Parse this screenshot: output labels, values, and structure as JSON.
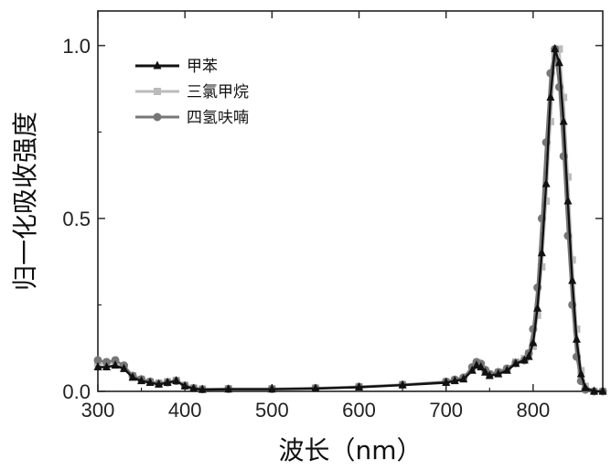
{
  "chart_data": {
    "type": "line",
    "xlabel": "波长（nm）",
    "ylabel": "归一化吸收强度",
    "xlim": [
      300,
      880
    ],
    "ylim": [
      0,
      1.1
    ],
    "x_ticks": [
      300,
      400,
      500,
      600,
      700,
      800
    ],
    "y_ticks": [
      0.0,
      0.5,
      1.0
    ],
    "x_tick_labels": [
      "300",
      "400",
      "500",
      "600",
      "700",
      "800"
    ],
    "y_tick_labels": [
      "0.0",
      "0.5",
      "1.0"
    ],
    "legend_position": "top-left",
    "grid": false,
    "series": [
      {
        "name": "甲苯",
        "color": "#111111",
        "line_width": 2.4,
        "marker": "triangle",
        "x": [
          300,
          310,
          320,
          330,
          340,
          350,
          360,
          370,
          380,
          390,
          400,
          410,
          420,
          450,
          500,
          550,
          600,
          650,
          700,
          710,
          720,
          730,
          735,
          740,
          745,
          750,
          760,
          770,
          780,
          790,
          795,
          800,
          805,
          810,
          815,
          820,
          825,
          830,
          835,
          840,
          845,
          850,
          855,
          860,
          870,
          880
        ],
        "y": [
          0.07,
          0.07,
          0.075,
          0.065,
          0.04,
          0.03,
          0.025,
          0.02,
          0.025,
          0.03,
          0.015,
          0.008,
          0.005,
          0.006,
          0.006,
          0.008,
          0.012,
          0.018,
          0.025,
          0.03,
          0.035,
          0.06,
          0.075,
          0.07,
          0.055,
          0.045,
          0.05,
          0.06,
          0.08,
          0.09,
          0.1,
          0.14,
          0.24,
          0.4,
          0.6,
          0.85,
          0.99,
          0.95,
          0.78,
          0.55,
          0.32,
          0.15,
          0.05,
          0.01,
          0.0,
          0.0
        ]
      },
      {
        "name": "三氯甲烷",
        "color": "#bbbbbb",
        "line_width": 2.4,
        "marker": "square",
        "x": [
          300,
          310,
          320,
          330,
          340,
          350,
          360,
          370,
          380,
          390,
          400,
          410,
          420,
          450,
          500,
          550,
          600,
          650,
          700,
          710,
          720,
          730,
          735,
          740,
          745,
          750,
          760,
          770,
          780,
          790,
          795,
          800,
          805,
          810,
          815,
          820,
          825,
          830,
          835,
          840,
          845,
          850,
          855,
          860,
          870,
          880
        ],
        "y": [
          0.08,
          0.08,
          0.085,
          0.07,
          0.045,
          0.035,
          0.028,
          0.024,
          0.028,
          0.032,
          0.018,
          0.01,
          0.007,
          0.008,
          0.008,
          0.01,
          0.014,
          0.02,
          0.028,
          0.033,
          0.038,
          0.065,
          0.08,
          0.075,
          0.06,
          0.05,
          0.055,
          0.065,
          0.085,
          0.095,
          0.11,
          0.13,
          0.22,
          0.36,
          0.55,
          0.78,
          0.97,
          0.99,
          0.85,
          0.62,
          0.38,
          0.18,
          0.06,
          0.015,
          0.0,
          0.0
        ]
      },
      {
        "name": "四氢呋喃",
        "color": "#777777",
        "line_width": 2.4,
        "marker": "circle",
        "x": [
          300,
          310,
          320,
          330,
          340,
          350,
          360,
          370,
          380,
          390,
          400,
          410,
          420,
          450,
          500,
          550,
          600,
          650,
          700,
          710,
          720,
          730,
          735,
          740,
          745,
          750,
          760,
          770,
          780,
          790,
          795,
          800,
          805,
          810,
          815,
          820,
          825,
          830,
          835,
          840,
          845,
          850,
          855,
          860,
          870,
          880
        ],
        "y": [
          0.09,
          0.085,
          0.09,
          0.075,
          0.045,
          0.035,
          0.028,
          0.022,
          0.026,
          0.03,
          0.016,
          0.009,
          0.006,
          0.007,
          0.007,
          0.009,
          0.013,
          0.019,
          0.028,
          0.034,
          0.04,
          0.07,
          0.085,
          0.08,
          0.062,
          0.05,
          0.056,
          0.066,
          0.082,
          0.09,
          0.11,
          0.18,
          0.3,
          0.5,
          0.72,
          0.92,
          0.99,
          0.88,
          0.68,
          0.45,
          0.25,
          0.1,
          0.03,
          0.005,
          0.0,
          0.0
        ]
      }
    ]
  }
}
